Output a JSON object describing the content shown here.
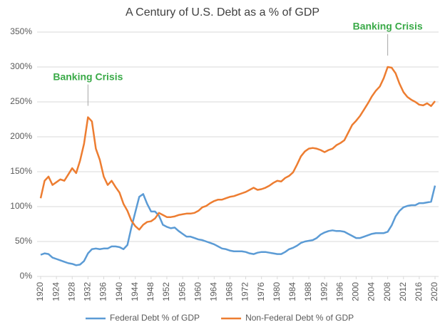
{
  "chart_data": {
    "type": "line",
    "title": "A Century of U.S. Debt as a % of GDP",
    "x": [
      1920,
      1921,
      1922,
      1923,
      1924,
      1925,
      1926,
      1927,
      1928,
      1929,
      1930,
      1931,
      1932,
      1933,
      1934,
      1935,
      1936,
      1937,
      1938,
      1939,
      1940,
      1941,
      1942,
      1943,
      1944,
      1945,
      1946,
      1947,
      1948,
      1949,
      1950,
      1951,
      1952,
      1953,
      1954,
      1955,
      1956,
      1957,
      1958,
      1959,
      1960,
      1961,
      1962,
      1963,
      1964,
      1965,
      1966,
      1967,
      1968,
      1969,
      1970,
      1971,
      1972,
      1973,
      1974,
      1975,
      1976,
      1977,
      1978,
      1979,
      1980,
      1981,
      1982,
      1983,
      1984,
      1985,
      1986,
      1987,
      1988,
      1989,
      1990,
      1991,
      1992,
      1993,
      1994,
      1995,
      1996,
      1997,
      1998,
      1999,
      2000,
      2001,
      2002,
      2003,
      2004,
      2005,
      2006,
      2007,
      2008,
      2009,
      2010,
      2011,
      2012,
      2013,
      2014,
      2015,
      2016,
      2017,
      2018,
      2019,
      2020
    ],
    "series": [
      {
        "name": "Federal Debt % of GDP",
        "color": "#5b9bd5",
        "values": [
          31,
          33,
          32,
          27,
          25,
          23,
          21,
          19,
          18,
          16,
          17,
          22,
          33,
          39,
          40,
          39,
          40,
          40,
          43,
          43,
          42,
          39,
          45,
          70,
          92,
          114,
          118,
          104,
          93,
          93,
          87,
          74,
          71,
          69,
          70,
          65,
          61,
          57,
          57,
          55,
          53,
          52,
          50,
          48,
          46,
          43,
          40,
          39,
          37,
          36,
          36,
          36,
          35,
          33,
          32,
          34,
          35,
          35,
          34,
          33,
          32,
          32,
          35,
          39,
          41,
          44,
          48,
          50,
          51,
          52,
          55,
          60,
          63,
          65,
          66,
          65,
          65,
          64,
          61,
          58,
          55,
          55,
          57,
          59,
          61,
          62,
          62,
          62,
          64,
          73,
          86,
          94,
          99,
          101,
          102,
          102,
          105,
          105,
          106,
          107,
          130
        ]
      },
      {
        "name": "Non-Federal Debt % of GDP",
        "color": "#ed7d31",
        "values": [
          112,
          137,
          143,
          131,
          135,
          139,
          137,
          146,
          155,
          148,
          166,
          190,
          228,
          222,
          183,
          167,
          143,
          131,
          137,
          128,
          120,
          104,
          94,
          80,
          72,
          67,
          74,
          78,
          79,
          83,
          91,
          88,
          85,
          85,
          86,
          88,
          89,
          90,
          90,
          91,
          94,
          99,
          101,
          105,
          108,
          110,
          110,
          112,
          114,
          115,
          117,
          119,
          121,
          124,
          127,
          124,
          125,
          127,
          130,
          134,
          137,
          136,
          141,
          144,
          149,
          160,
          172,
          179,
          183,
          184,
          183,
          181,
          178,
          181,
          183,
          188,
          191,
          195,
          206,
          217,
          223,
          230,
          239,
          248,
          258,
          266,
          272,
          284,
          300,
          299,
          291,
          276,
          264,
          257,
          253,
          250,
          246,
          245,
          248,
          244,
          251
        ]
      }
    ],
    "xlim": [
      1920,
      2020
    ],
    "xticks": [
      1920,
      1924,
      1928,
      1932,
      1936,
      1940,
      1944,
      1948,
      1952,
      1956,
      1960,
      1964,
      1968,
      1972,
      1976,
      1980,
      1984,
      1988,
      1992,
      1996,
      2000,
      2004,
      2008,
      2012,
      2016,
      2020
    ],
    "ylim": [
      0,
      350
    ],
    "yticks": [
      {
        "value": 0,
        "label": "0%"
      },
      {
        "value": 50,
        "label": "50%"
      },
      {
        "value": 100,
        "label": "100%"
      },
      {
        "value": 150,
        "label": "150%"
      },
      {
        "value": 200,
        "label": "200%"
      },
      {
        "value": 250,
        "label": "250%"
      },
      {
        "value": 300,
        "label": "300%"
      },
      {
        "value": 350,
        "label": "350%"
      }
    ],
    "grid": true,
    "annotations": [
      {
        "text": "Banking Crisis",
        "x": 1932,
        "color": "#3aaa48"
      },
      {
        "text": "Banking Crisis",
        "x": 2008,
        "color": "#3aaa48"
      }
    ],
    "legend": "bottom"
  }
}
